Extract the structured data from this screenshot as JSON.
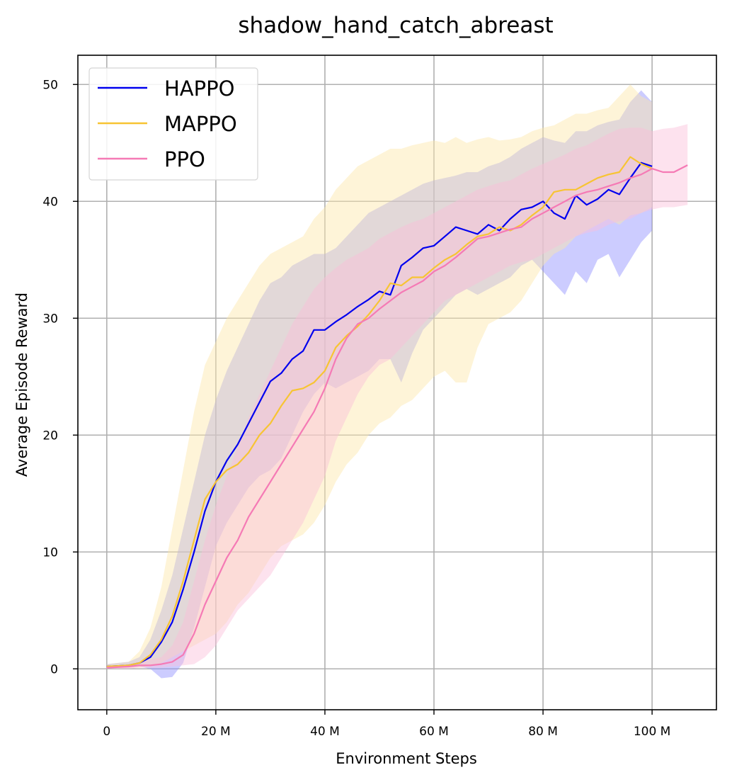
{
  "chart_data": {
    "type": "line",
    "title": "shadow_hand_catch_abreast",
    "xlabel": "Environment Steps",
    "ylabel": "Average Episode Reward",
    "xlim": [
      -5.3,
      111.8
    ],
    "ylim": [
      -3.5,
      52.5
    ],
    "xticks": [
      0,
      20,
      40,
      60,
      80,
      100
    ],
    "xtick_labels": [
      "0",
      "20 M",
      "40 M",
      "60 M",
      "80 M",
      "100 M"
    ],
    "yticks": [
      0,
      10,
      20,
      30,
      40,
      50
    ],
    "ytick_labels": [
      "0",
      "10",
      "20",
      "30",
      "40",
      "50"
    ],
    "grid": true,
    "legend_position": "top-left",
    "series": [
      {
        "name": "HAPPO",
        "color": "#0000ee",
        "band_color": "#8f8fff",
        "x": [
          0,
          4,
          6,
          8,
          10,
          12,
          14,
          16,
          18,
          20,
          22,
          24,
          26,
          28,
          30,
          32,
          34,
          36,
          38,
          40,
          42,
          44,
          46,
          48,
          50,
          52,
          54,
          56,
          58,
          60,
          62,
          64,
          66,
          68,
          70,
          72,
          74,
          76,
          78,
          80,
          82,
          84,
          86,
          88,
          90,
          92,
          94,
          96,
          98,
          100
        ],
        "values": [
          0.2,
          0.3,
          0.5,
          1.0,
          2.3,
          4.0,
          6.8,
          10.0,
          13.5,
          16.0,
          17.8,
          19.2,
          21.0,
          22.8,
          24.6,
          25.3,
          26.5,
          27.2,
          29.0,
          29.0,
          29.7,
          30.3,
          31.0,
          31.6,
          32.3,
          32.0,
          34.5,
          35.2,
          36.0,
          36.2,
          37.0,
          37.8,
          37.5,
          37.2,
          38.0,
          37.5,
          38.5,
          39.3,
          39.5,
          40.0,
          39.0,
          38.5,
          40.5,
          39.7,
          40.2,
          41.0,
          40.6,
          42.0,
          43.3,
          43.0
        ],
        "upper": [
          0.4,
          0.6,
          1.0,
          2.5,
          5.0,
          8.0,
          12.0,
          16.0,
          20.0,
          23.0,
          25.5,
          27.5,
          29.5,
          31.5,
          33.0,
          33.5,
          34.5,
          35.0,
          35.5,
          35.5,
          36.0,
          37.0,
          38.0,
          39.0,
          39.5,
          40.0,
          40.5,
          41.0,
          41.5,
          41.8,
          42.0,
          42.2,
          42.5,
          42.5,
          43.0,
          43.3,
          43.8,
          44.5,
          45.0,
          45.5,
          45.2,
          45.0,
          46.0,
          46.0,
          46.5,
          46.8,
          47.0,
          48.5,
          49.5,
          48.5
        ],
        "lower": [
          0.1,
          0.1,
          0.2,
          0.0,
          -0.8,
          -0.7,
          0.5,
          3.5,
          7.0,
          10.5,
          12.5,
          14.0,
          15.5,
          16.5,
          17.0,
          18.0,
          20.0,
          22.0,
          23.5,
          24.5,
          24.0,
          24.5,
          25.0,
          25.5,
          26.5,
          26.5,
          24.5,
          27.0,
          29.0,
          30.0,
          31.0,
          32.0,
          32.5,
          32.0,
          32.5,
          33.0,
          33.5,
          34.5,
          35.0,
          34.0,
          33.0,
          32.0,
          34.0,
          33.0,
          35.0,
          35.5,
          33.5,
          35.0,
          36.5,
          37.5
        ]
      },
      {
        "name": "MAPPO",
        "color": "#f7c433",
        "band_color": "#fde7a8",
        "x": [
          0,
          4,
          6,
          8,
          10,
          12,
          14,
          16,
          18,
          20,
          22,
          24,
          26,
          28,
          30,
          32,
          34,
          36,
          38,
          40,
          42,
          44,
          46,
          48,
          50,
          52,
          54,
          56,
          58,
          60,
          62,
          64,
          66,
          68,
          70,
          72,
          74,
          76,
          78,
          80,
          82,
          84,
          86,
          88,
          90,
          92,
          94,
          96,
          98,
          100
        ],
        "values": [
          0.2,
          0.3,
          0.5,
          1.2,
          2.5,
          4.5,
          7.5,
          11.0,
          14.5,
          16.0,
          17.0,
          17.5,
          18.5,
          20.0,
          21.0,
          22.5,
          23.8,
          24.0,
          24.5,
          25.5,
          27.5,
          28.5,
          29.3,
          30.3,
          31.5,
          33.0,
          32.8,
          33.5,
          33.5,
          34.3,
          35.0,
          35.5,
          36.3,
          37.0,
          37.2,
          37.8,
          37.5,
          38.0,
          38.8,
          39.5,
          40.8,
          41.0,
          41.0,
          41.5,
          42.0,
          42.3,
          42.5,
          43.8,
          43.2,
          42.8
        ],
        "upper": [
          0.4,
          0.6,
          1.5,
          3.5,
          7.0,
          12.0,
          17.0,
          22.0,
          26.0,
          28.0,
          30.0,
          31.5,
          33.0,
          34.5,
          35.5,
          36.0,
          36.5,
          37.0,
          38.5,
          39.5,
          41.0,
          42.0,
          43.0,
          43.5,
          44.0,
          44.5,
          44.5,
          44.8,
          45.0,
          45.2,
          45.0,
          45.5,
          45.0,
          45.3,
          45.5,
          45.2,
          45.3,
          45.5,
          46.0,
          46.3,
          46.5,
          47.0,
          47.5,
          47.5,
          47.8,
          48.0,
          49.0,
          50.0,
          49.0,
          48.5
        ],
        "lower": [
          0.1,
          0.1,
          0.1,
          0.2,
          0.5,
          1.0,
          1.5,
          2.0,
          2.5,
          3.0,
          4.0,
          5.5,
          6.5,
          8.0,
          9.5,
          10.5,
          11.0,
          11.5,
          12.5,
          14.0,
          16.0,
          17.5,
          18.5,
          20.0,
          21.0,
          21.5,
          22.5,
          23.0,
          24.0,
          25.0,
          25.5,
          24.5,
          24.5,
          27.5,
          29.5,
          30.0,
          30.5,
          31.5,
          33.0,
          34.5,
          35.5,
          36.0,
          37.0,
          37.5,
          38.0,
          38.5,
          38.0,
          38.8,
          39.0,
          39.5
        ]
      },
      {
        "name": "PPO",
        "color": "#f57ab5",
        "band_color": "#fbbfd9",
        "x": [
          0,
          4,
          6,
          8,
          10,
          12,
          14,
          16,
          18,
          20,
          22,
          24,
          26,
          28,
          30,
          32,
          34,
          36,
          38,
          40,
          42,
          44,
          46,
          48,
          50,
          52,
          54,
          56,
          58,
          60,
          62,
          64,
          66,
          68,
          70,
          72,
          74,
          76,
          78,
          80,
          82,
          84,
          86,
          88,
          90,
          92,
          94,
          96,
          98,
          100,
          102,
          104,
          106.5
        ],
        "values": [
          0.1,
          0.2,
          0.3,
          0.3,
          0.4,
          0.6,
          1.2,
          3.0,
          5.5,
          7.5,
          9.5,
          11.0,
          13.0,
          14.5,
          16.0,
          17.5,
          19.0,
          20.5,
          22.0,
          24.0,
          26.5,
          28.3,
          29.5,
          30.0,
          30.8,
          31.5,
          32.2,
          32.7,
          33.2,
          34.0,
          34.5,
          35.2,
          36.0,
          36.8,
          37.0,
          37.3,
          37.6,
          37.8,
          38.5,
          39.0,
          39.5,
          40.0,
          40.5,
          40.8,
          41.0,
          41.3,
          41.6,
          42.0,
          42.3,
          42.8,
          42.5,
          42.5,
          43.1
        ],
        "upper": [
          0.2,
          0.4,
          0.6,
          0.8,
          1.0,
          2.0,
          4.0,
          7.5,
          11.0,
          14.0,
          16.5,
          19.0,
          21.5,
          23.5,
          25.5,
          27.5,
          29.5,
          31.0,
          32.5,
          33.5,
          34.3,
          35.0,
          35.5,
          36.0,
          36.8,
          37.3,
          37.8,
          38.2,
          38.5,
          39.0,
          39.5,
          40.0,
          40.5,
          41.0,
          41.3,
          41.6,
          41.8,
          42.3,
          42.8,
          43.2,
          43.6,
          44.0,
          44.5,
          44.8,
          45.3,
          45.8,
          46.2,
          46.3,
          46.3,
          46.0,
          46.2,
          46.3,
          46.6
        ],
        "lower": [
          0.0,
          0.0,
          0.1,
          0.1,
          0.1,
          0.2,
          0.3,
          0.4,
          1.0,
          2.0,
          3.5,
          5.0,
          6.0,
          7.0,
          8.0,
          9.5,
          11.0,
          12.5,
          14.5,
          16.5,
          19.5,
          21.5,
          23.5,
          25.0,
          26.0,
          26.5,
          27.5,
          28.5,
          29.5,
          30.5,
          31.5,
          32.0,
          32.5,
          33.0,
          33.5,
          34.0,
          34.5,
          34.8,
          35.0,
          35.5,
          36.0,
          36.5,
          37.0,
          37.3,
          37.5,
          38.0,
          38.3,
          38.5,
          39.0,
          39.3,
          39.5,
          39.5,
          39.7
        ]
      }
    ]
  }
}
